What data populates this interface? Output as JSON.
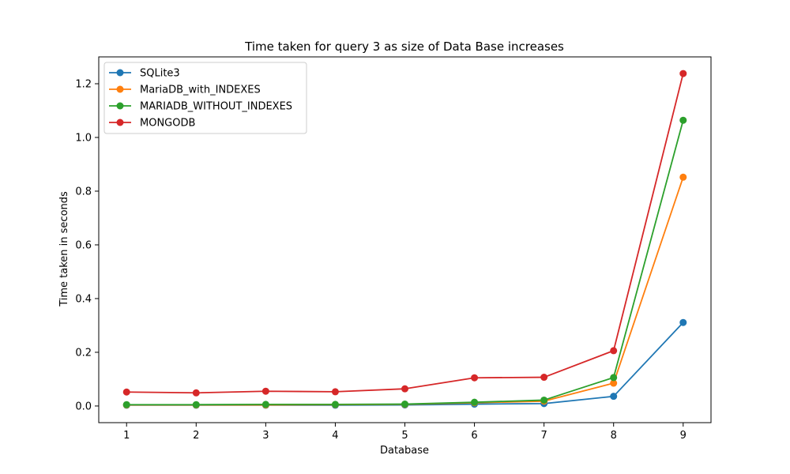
{
  "chart_data": {
    "type": "line",
    "title": "Time taken for query 3 as size of Data Base increases",
    "xlabel": "Database",
    "ylabel": "Time taken in seconds",
    "x": [
      1,
      2,
      3,
      4,
      5,
      6,
      7,
      8,
      9
    ],
    "xlim": [
      0.6,
      9.4
    ],
    "ylim": [
      -0.062,
      1.3
    ],
    "xticks": [
      1,
      2,
      3,
      4,
      5,
      6,
      7,
      8,
      9
    ],
    "yticks": [
      0.0,
      0.2,
      0.4,
      0.6,
      0.8,
      1.0,
      1.2
    ],
    "ytick_labels": [
      "0.0",
      "0.2",
      "0.4",
      "0.6",
      "0.8",
      "1.0",
      "1.2"
    ],
    "grid": false,
    "legend_position": "top-left",
    "series": [
      {
        "name": "SQLite3",
        "color": "#1f77b4",
        "values": [
          0.003,
          0.003,
          0.003,
          0.003,
          0.004,
          0.007,
          0.009,
          0.036,
          0.311
        ]
      },
      {
        "name": "MariaDB_with_INDEXES",
        "color": "#ff7f0e",
        "values": [
          0.004,
          0.004,
          0.004,
          0.005,
          0.006,
          0.012,
          0.018,
          0.085,
          0.852
        ]
      },
      {
        "name": "MARIADB_WITHOUT_INDEXES",
        "color": "#2ca02c",
        "values": [
          0.005,
          0.005,
          0.006,
          0.006,
          0.007,
          0.014,
          0.022,
          0.106,
          1.064
        ]
      },
      {
        "name": "MONGODB",
        "color": "#d62728",
        "values": [
          0.052,
          0.049,
          0.055,
          0.053,
          0.064,
          0.105,
          0.107,
          0.206,
          1.238
        ]
      }
    ]
  }
}
